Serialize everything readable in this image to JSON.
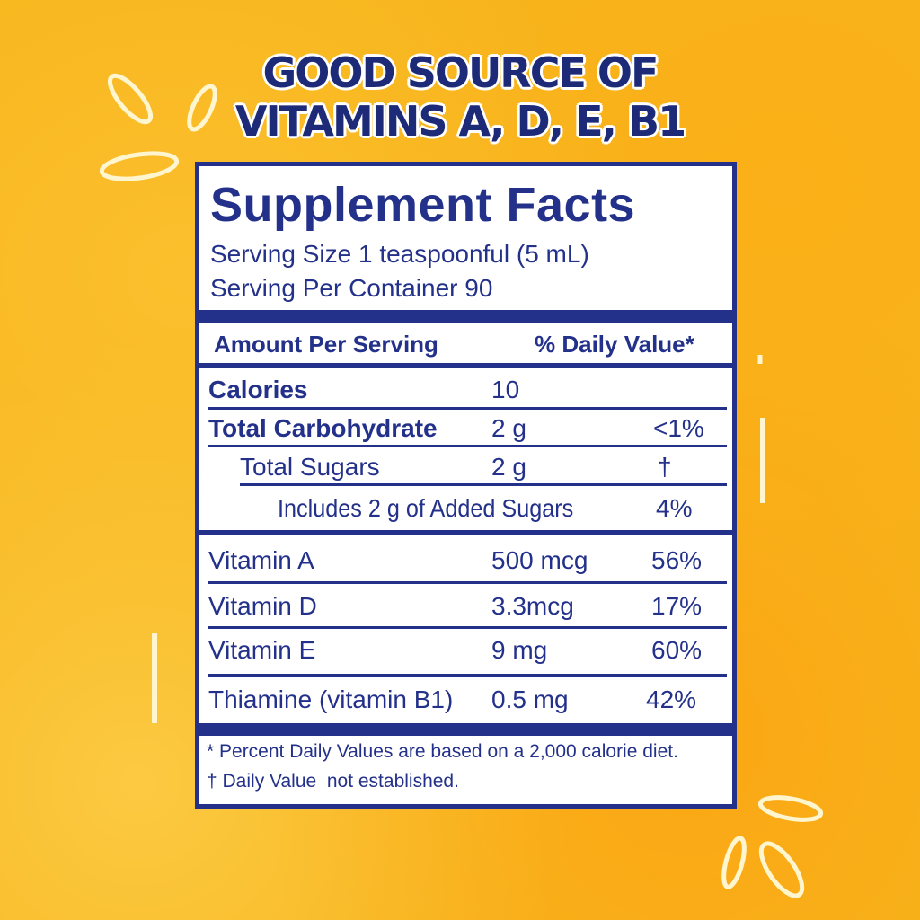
{
  "headline": {
    "line1": "GOOD SOURCE OF",
    "line2": "VITAMINS A, D, E, B1"
  },
  "facts": {
    "title": "Supplement Facts",
    "serving_size": "Serving Size 1 teaspoonful (5 mL)",
    "servings_per_container": "Serving Per Container 90",
    "header_amount": "Amount Per Serving",
    "header_dv": "% Daily Value*",
    "rows": [
      {
        "name": "Calories",
        "amount": "10",
        "dv": ""
      },
      {
        "name": "Total Carbohydrate",
        "amount": "2 g",
        "dv": "<1%"
      },
      {
        "name": "Total Sugars",
        "amount": "2 g",
        "dv": "†"
      },
      {
        "name": "Includes  2 g of Added Sugars",
        "amount": "",
        "dv": "4%"
      },
      {
        "name": "Vitamin A",
        "amount": "500 mcg",
        "dv": "56%"
      },
      {
        "name": "Vitamin D",
        "amount": "3.3mcg",
        "dv": "17%"
      },
      {
        "name": "Vitamin E",
        "amount": "9 mg",
        "dv": "60%"
      },
      {
        "name": "Thiamine (vitamin B1)",
        "amount": "0.5 mg",
        "dv": "42%"
      }
    ],
    "footnote1": "* Percent Daily Values are based on a 2,000 calorie diet.",
    "footnote2": "† Daily Value  not established."
  },
  "colors": {
    "brand_blue": "#23318a",
    "background_yellow": "#f7b51c"
  }
}
